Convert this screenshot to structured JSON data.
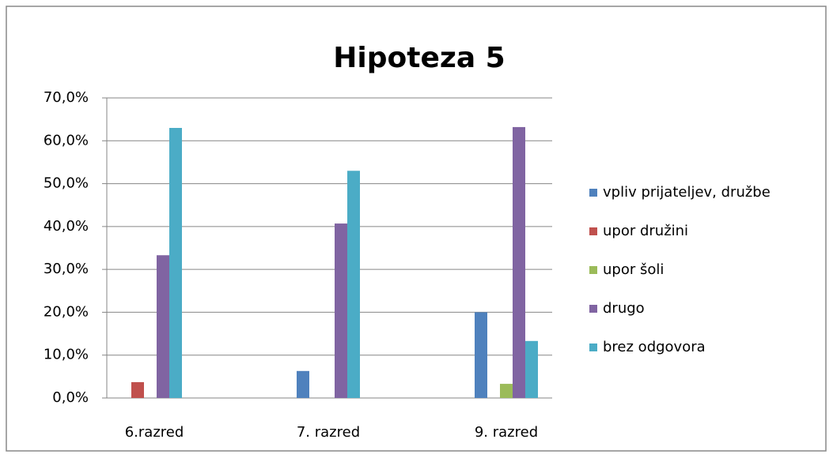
{
  "chart_data": {
    "type": "bar",
    "title": "Hipoteza 5",
    "categories": [
      "6.razred",
      "7. razred",
      "9. razred"
    ],
    "series": [
      {
        "name": "vpliv prijateljev, družbe",
        "color": "#4f81bd",
        "values": [
          0,
          6.3,
          20
        ]
      },
      {
        "name": "upor družini",
        "color": "#c0504d",
        "values": [
          3.7,
          0,
          0
        ]
      },
      {
        "name": "upor šoli",
        "color": "#9bbb59",
        "values": [
          0,
          0,
          3.3
        ]
      },
      {
        "name": "drugo",
        "color": "#8064a2",
        "values": [
          33.3,
          40.7,
          63.2
        ]
      },
      {
        "name": "brez odgovora",
        "color": "#4bacc6",
        "values": [
          63,
          53,
          13.3
        ]
      }
    ],
    "ylim": [
      0,
      70
    ],
    "yticks": [
      {
        "value": 0,
        "label": "0,0%"
      },
      {
        "value": 10,
        "label": "10,0%"
      },
      {
        "value": 20,
        "label": "20,0%"
      },
      {
        "value": 30,
        "label": "30,0%"
      },
      {
        "value": 40,
        "label": "40,0%"
      },
      {
        "value": 50,
        "label": "50,0%"
      },
      {
        "value": 60,
        "label": "60,0%"
      },
      {
        "value": 70,
        "label": "70,0%"
      }
    ],
    "grid": true,
    "legend": "right"
  }
}
